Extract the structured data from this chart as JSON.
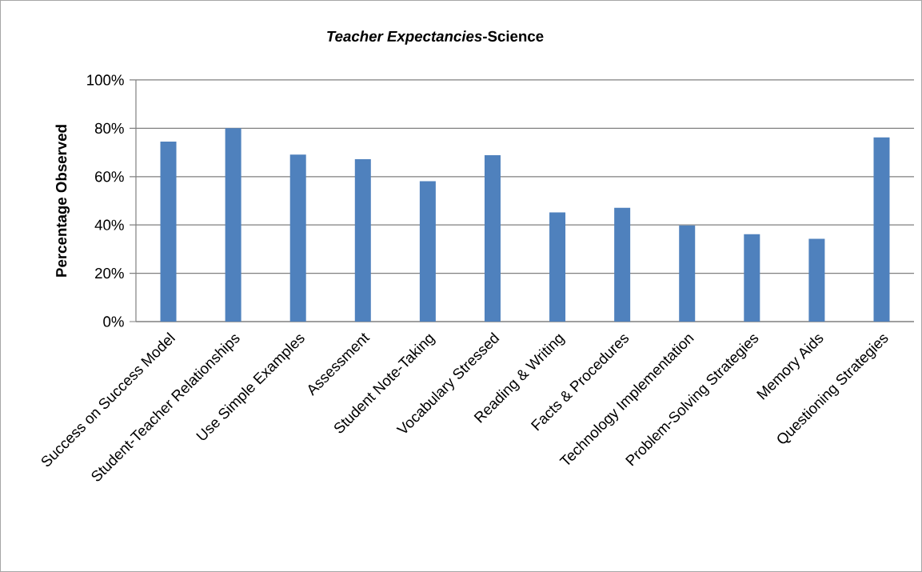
{
  "chart_data": {
    "type": "bar",
    "title": "*Teacher Expectancies*-Science",
    "ylabel": "Percentage Observed",
    "categories": [
      "Success on Success Model",
      "Student-Teacher Relationships",
      "Use Simple Examples",
      "Assessment",
      "Student Note-Taking",
      "Vocabulary Stressed",
      "Reading & Writing",
      "Facts & Procedures",
      "Technology Implementation",
      "Problem-Solving Strategies",
      "Memory Aids",
      "Questioning Strategies"
    ],
    "values": [
      74.5,
      80,
      69.1,
      67.2,
      58.1,
      68.9,
      45.2,
      47.1,
      39.8,
      36.2,
      34.3,
      76.2
    ],
    "color": "#4f81bd",
    "ylim": [
      0,
      100
    ],
    "yticks": [
      {
        "value": 0,
        "label": "0%"
      },
      {
        "value": 20,
        "label": "20%"
      },
      {
        "value": 40,
        "label": "40%"
      },
      {
        "value": 60,
        "label": "60%"
      },
      {
        "value": 80,
        "label": "80%"
      },
      {
        "value": 100,
        "label": "100%"
      }
    ],
    "grid": "y"
  }
}
